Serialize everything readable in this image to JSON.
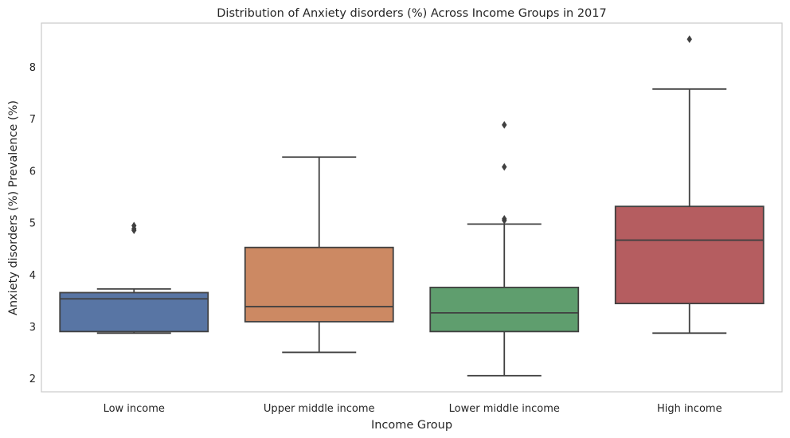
{
  "chart_data": {
    "type": "boxplot",
    "title": "Distribution of Anxiety disorders (%) Across Income Groups in 2017",
    "xlabel": "Income Group",
    "ylabel": "Anxiety disorders (%) Prevalence (%)",
    "ylim": [
      1.75,
      8.85
    ],
    "yticks": [
      2,
      3,
      4,
      5,
      6,
      7,
      8
    ],
    "grid": false,
    "categories": [
      "Low income",
      "Upper middle income",
      "Lower middle income",
      "High income"
    ],
    "boxes": [
      {
        "category": "Low income",
        "whisker_low": 2.88,
        "q1": 2.91,
        "median": 3.54,
        "q3": 3.66,
        "whisker_high": 3.73,
        "outliers": [
          4.86,
          4.89,
          4.95
        ],
        "color": "#5875a4"
      },
      {
        "category": "Upper middle income",
        "whisker_low": 2.51,
        "q1": 3.1,
        "median": 3.39,
        "q3": 4.53,
        "whisker_high": 6.27,
        "outliers": [],
        "color": "#cc8963"
      },
      {
        "category": "Lower middle income",
        "whisker_low": 2.06,
        "q1": 2.91,
        "median": 3.27,
        "q3": 3.76,
        "whisker_high": 4.98,
        "outliers": [
          5.05,
          5.08,
          6.08,
          6.89
        ],
        "color": "#5f9e6e"
      },
      {
        "category": "High income",
        "whisker_low": 2.88,
        "q1": 3.45,
        "median": 4.67,
        "q3": 5.32,
        "whisker_high": 7.58,
        "outliers": [
          8.54
        ],
        "color": "#b55d60"
      }
    ]
  }
}
